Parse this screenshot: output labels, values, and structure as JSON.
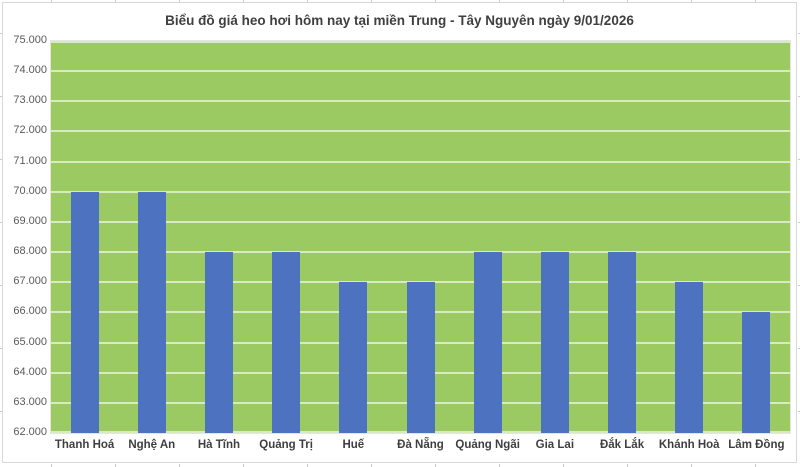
{
  "chart_data": {
    "type": "bar",
    "title": "Biểu đồ giá heo hơi hôm nay tại miền Trung - Tây Nguyên ngày 9/01/2026",
    "categories": [
      "Thanh Hoá",
      "Nghệ An",
      "Hà Tĩnh",
      "Quảng Trị",
      "Huế",
      "Đà Nẵng",
      "Quảng Ngãi",
      "Gia Lai",
      "Đắk Lắk",
      "Khánh Hoà",
      "Lâm Đồng"
    ],
    "values": [
      70000,
      70000,
      68000,
      68000,
      67000,
      67000,
      68000,
      68000,
      68000,
      67000,
      66000
    ],
    "xlabel": "",
    "ylabel": "",
    "ylim": [
      62000,
      75000
    ],
    "ytick_step": 1000,
    "ytick_labels": [
      "75.000",
      "74.000",
      "73.000",
      "72.000",
      "71.000",
      "70.000",
      "69.000",
      "68.000",
      "67.000",
      "66.000",
      "65.000",
      "64.000",
      "63.000",
      "62.000"
    ],
    "grid": true,
    "legend": false,
    "colors": {
      "bar": "#4C72C0",
      "plot_background": "#9CCA62",
      "gridline": "rgba(255,255,255,0.6)",
      "title_text": "#3F3F3F",
      "ytick_text": "#595959",
      "xtick_text": "#3F3F3F",
      "chart_border": "#D8D8D8",
      "canvas_background": "#FFFFFF"
    }
  }
}
